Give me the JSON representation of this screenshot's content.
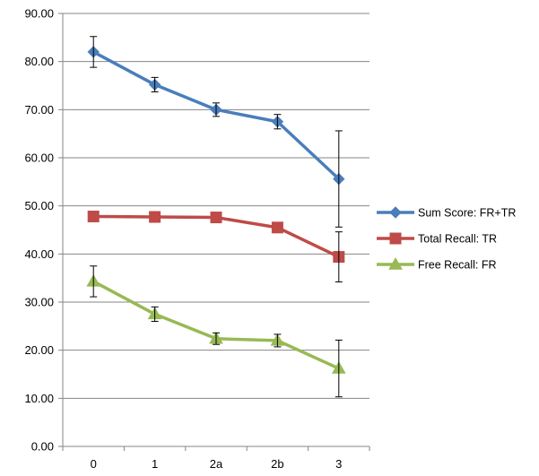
{
  "chart_data": {
    "type": "line",
    "title": "",
    "xlabel": "",
    "ylabel": "",
    "categories": [
      "0",
      "1",
      "2a",
      "2b",
      "3"
    ],
    "ylim": [
      0,
      90
    ],
    "ytick_step": 10,
    "ytick_labels": [
      "0.00",
      "10.00",
      "20.00",
      "30.00",
      "40.00",
      "50.00",
      "60.00",
      "70.00",
      "80.00",
      "90.00"
    ],
    "grid": "horizontal",
    "legend_position": "right",
    "series": [
      {
        "name": "Sum Score: FR+TR",
        "color": "#4A7EBB",
        "marker": "diamond",
        "values": [
          82.0,
          75.2,
          70.0,
          67.5,
          55.6
        ],
        "error": [
          3.2,
          1.5,
          1.4,
          1.5,
          10.0
        ]
      },
      {
        "name": "Total Recall: TR",
        "color": "#BE4B48",
        "marker": "square",
        "values": [
          47.8,
          47.7,
          47.6,
          45.5,
          39.4
        ],
        "error": [
          0,
          0,
          0,
          0,
          5.2
        ]
      },
      {
        "name": "Free Recall: FR",
        "color": "#98B954",
        "marker": "triangle",
        "values": [
          34.3,
          27.5,
          22.4,
          22.0,
          16.2
        ],
        "error": [
          3.2,
          1.5,
          1.2,
          1.3,
          5.9
        ]
      }
    ]
  }
}
